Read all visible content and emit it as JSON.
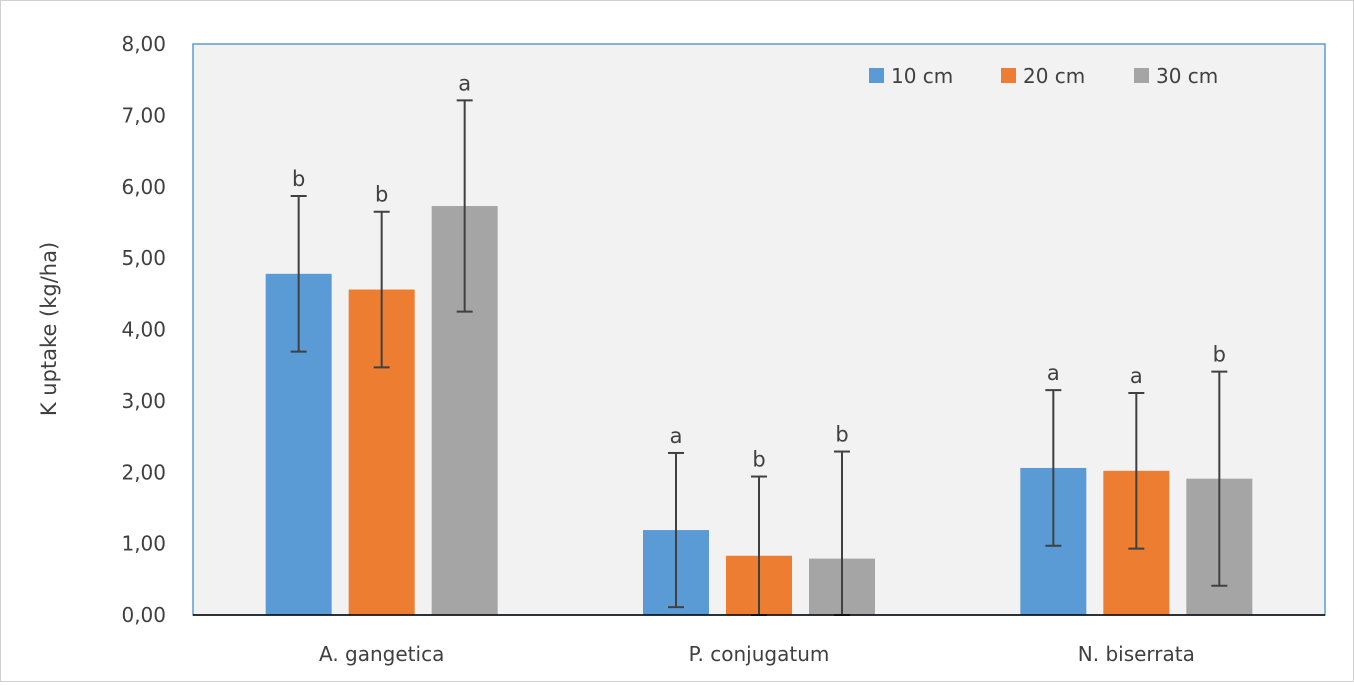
{
  "chart_data": {
    "type": "bar",
    "title": "",
    "xlabel": "",
    "ylabel": "K uptake (kg/ha)",
    "ylim": [
      0,
      8
    ],
    "yticks": [
      "0,00",
      "1,00",
      "2,00",
      "3,00",
      "4,00",
      "5,00",
      "6,00",
      "7,00",
      "8,00"
    ],
    "grid": false,
    "legend_position": "top-right",
    "categories": [
      "A. gangetica",
      "P. conjugatum",
      "N. biserrata"
    ],
    "series": [
      {
        "name": "10 cm",
        "color": "#5B9BD5",
        "values": [
          4.78,
          1.19,
          2.06
        ],
        "error": [
          1.09,
          1.08,
          1.09
        ],
        "labels": [
          "b",
          "a",
          "a"
        ]
      },
      {
        "name": "20 cm",
        "color": "#ED7D31",
        "values": [
          4.56,
          0.83,
          2.02
        ],
        "error": [
          1.09,
          1.11,
          1.09
        ],
        "labels": [
          "b",
          "b",
          "a"
        ]
      },
      {
        "name": "30 cm",
        "color": "#A5A5A5",
        "values": [
          5.73,
          0.79,
          1.91
        ],
        "error": [
          1.48,
          1.5,
          1.5
        ],
        "labels": [
          "a",
          "b",
          "b"
        ]
      }
    ]
  }
}
